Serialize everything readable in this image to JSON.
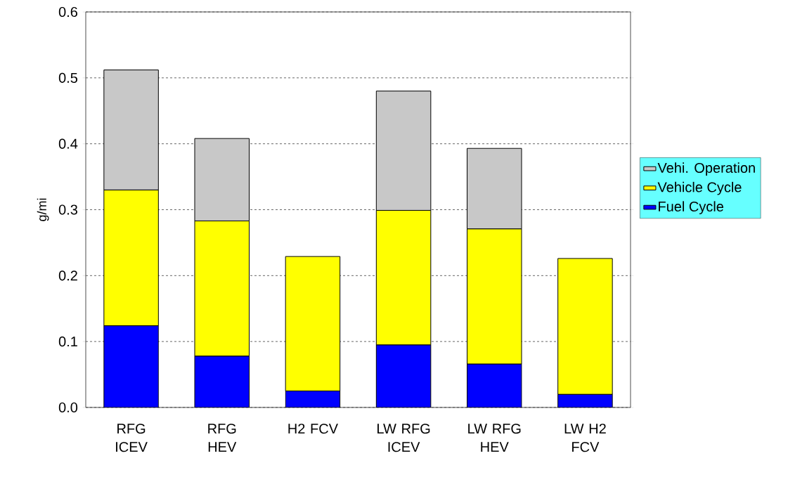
{
  "chart_data": {
    "type": "bar",
    "stacked": true,
    "ylabel": "g/mi",
    "categories": [
      "RFG ICEV",
      "RFG HEV",
      "H2 FCV",
      "LW RFG ICEV",
      "LW RFG HEV",
      "LW H2 FCV"
    ],
    "series": [
      {
        "name": "Fuel Cycle",
        "color": "#0000ff",
        "values": [
          0.124,
          0.078,
          0.025,
          0.095,
          0.066,
          0.02
        ]
      },
      {
        "name": "Vehicle Cycle",
        "color": "#ffff00",
        "values": [
          0.206,
          0.205,
          0.204,
          0.204,
          0.205,
          0.206
        ]
      },
      {
        "name": "Vehi. Operation",
        "color": "#c8c8c8",
        "values": [
          0.182,
          0.125,
          null,
          0.181,
          0.122,
          null
        ]
      }
    ],
    "ylim": [
      0,
      0.6
    ],
    "yticks": [
      {
        "value": 0,
        "label": "0.0"
      },
      0.1,
      0.2,
      0.3,
      0.4,
      0.5,
      0.6
    ],
    "grid": "y",
    "legend": "right"
  }
}
